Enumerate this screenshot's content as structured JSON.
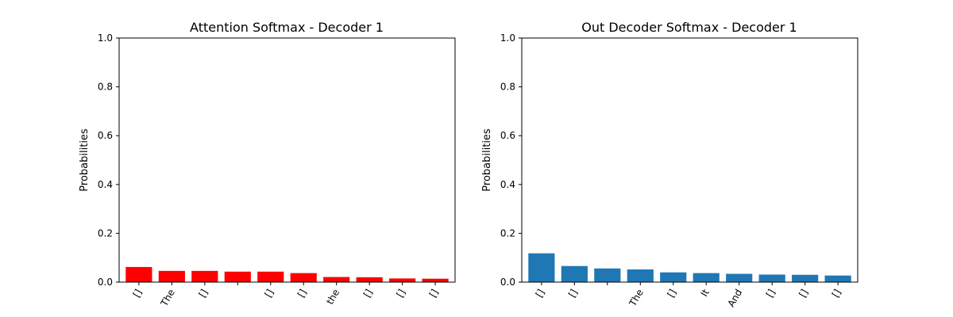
{
  "chart_data": [
    {
      "type": "bar",
      "title": "Attention Softmax - Decoder 1",
      "xlabel": "",
      "ylabel": "Probabilities",
      "ylim": [
        0,
        1.0
      ],
      "yticks": [
        "0.0",
        "0.2",
        "0.4",
        "0.6",
        "0.8",
        "1.0"
      ],
      "categories": [
        "[]",
        "The",
        "[]",
        "",
        "[]",
        "[]",
        "the",
        "[]",
        "[]",
        "[]"
      ],
      "values": [
        0.062,
        0.046,
        0.046,
        0.043,
        0.043,
        0.037,
        0.021,
        0.02,
        0.015,
        0.014
      ],
      "color": "#ff0000",
      "grid": false,
      "legend": null
    },
    {
      "type": "bar",
      "title": "Out Decoder Softmax - Decoder 1",
      "xlabel": "",
      "ylabel": "Probabilities",
      "ylim": [
        0,
        1.0
      ],
      "yticks": [
        "0.0",
        "0.2",
        "0.4",
        "0.6",
        "0.8",
        "1.0"
      ],
      "categories": [
        "[]",
        "[]",
        "",
        "The",
        "[]",
        "It",
        "And",
        "[]",
        "[]",
        "[]"
      ],
      "values": [
        0.118,
        0.066,
        0.056,
        0.052,
        0.04,
        0.037,
        0.034,
        0.031,
        0.03,
        0.027
      ],
      "color": "#1f77b4",
      "grid": false,
      "legend": null
    }
  ]
}
